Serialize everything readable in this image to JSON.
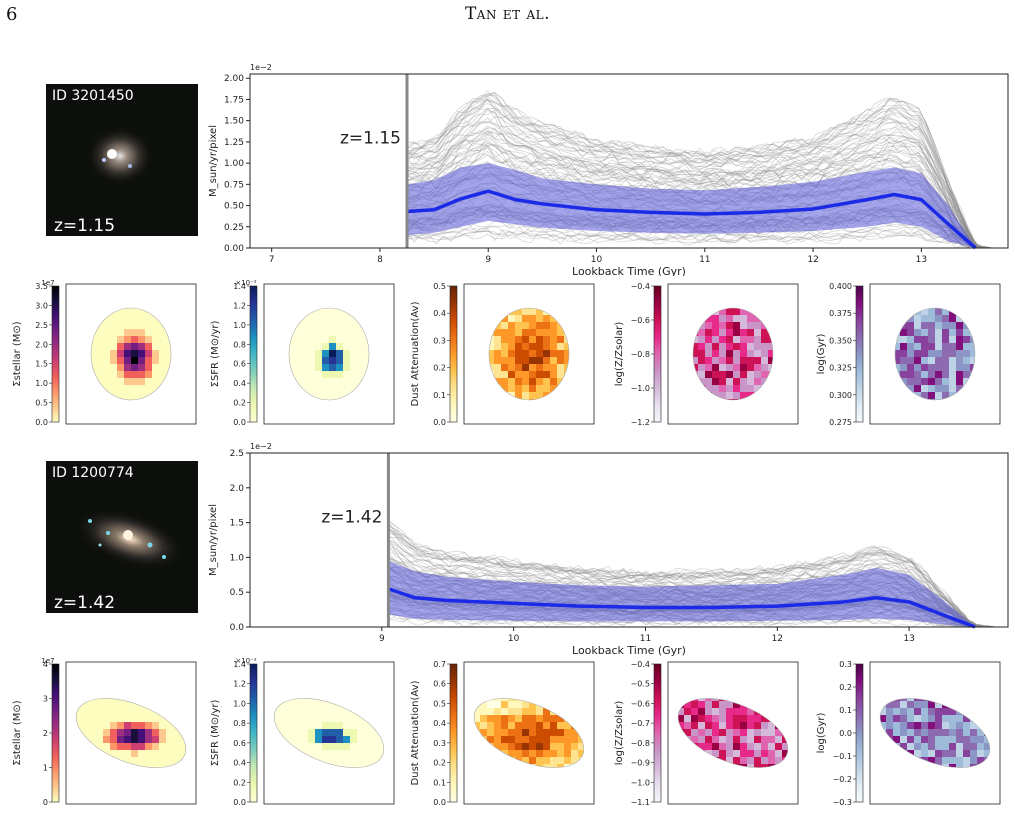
{
  "header": {
    "page_number": "6",
    "running_head": "Tan et al."
  },
  "colors": {
    "sfh_band": "#5a5ad8",
    "sfh_median": "#1a2ae6",
    "gray_track": "#8c8c8c"
  },
  "galaxies": [
    {
      "id_label": "ID 3201450",
      "redshift_label": "z=1.15",
      "sfh": {
        "type": "line",
        "xlabel": "Lookback Time (Gyr)",
        "ylabel": "M_sun/yr/pixel",
        "y_exponent": "1e−2",
        "xlim": [
          6.8,
          13.8
        ],
        "ylim": [
          0,
          2.05
        ],
        "x_ticks": [
          "7",
          "8",
          "9",
          "10",
          "11",
          "12",
          "13"
        ],
        "y_ticks": [
          "0.00",
          "0.25",
          "0.50",
          "0.75",
          "1.00",
          "1.25",
          "1.50",
          "1.75",
          "2.00"
        ],
        "z_marker_x": 8.25,
        "z_label": "z=1.15",
        "median": {
          "x": [
            8.25,
            8.5,
            8.75,
            9.0,
            9.25,
            9.5,
            10.0,
            10.5,
            11.0,
            11.5,
            12.0,
            12.5,
            12.75,
            13.0,
            13.25,
            13.5
          ],
          "y": [
            0.43,
            0.45,
            0.58,
            0.67,
            0.57,
            0.52,
            0.45,
            0.42,
            0.4,
            0.42,
            0.46,
            0.57,
            0.63,
            0.57,
            0.28,
            0.0
          ]
        },
        "band_upper": [
          0.75,
          0.8,
          0.95,
          1.0,
          0.92,
          0.82,
          0.75,
          0.7,
          0.68,
          0.72,
          0.78,
          0.9,
          0.95,
          0.88,
          0.5,
          0.0
        ],
        "band_lower": [
          0.15,
          0.18,
          0.25,
          0.32,
          0.28,
          0.24,
          0.2,
          0.18,
          0.17,
          0.18,
          0.2,
          0.25,
          0.3,
          0.25,
          0.08,
          0.0
        ],
        "gray_peak": 1.95
      },
      "maps": [
        {
          "cbar_label": "Σstellar (M⊙)",
          "exponent": "1e7",
          "ticks": [
            "0.0",
            "0.5",
            "1.0",
            "1.5",
            "2.0",
            "2.5",
            "3.0",
            "3.5"
          ],
          "colormap": "magma_r"
        },
        {
          "cbar_label": "ΣSFR (M⊙/yr)",
          "exponent": "×10⁻²",
          "ticks": [
            "0.0",
            "0.2",
            "0.4",
            "0.6",
            "0.8",
            "1.0",
            "1.2",
            "1.4"
          ],
          "colormap": "YlGnBu"
        },
        {
          "cbar_label": "Dust Attenuation(Av)",
          "exponent": "",
          "ticks": [
            "0.0",
            "0.1",
            "0.2",
            "0.3",
            "0.4",
            "0.5"
          ],
          "colormap": "YlOrBr"
        },
        {
          "cbar_label": "log(Z/Zsolar)",
          "exponent": "",
          "ticks": [
            "−1.2",
            "−1.0",
            "−0.8",
            "−0.6",
            "−0.4"
          ],
          "colormap": "PuRd"
        },
        {
          "cbar_label": "log(Gyr)",
          "exponent": "",
          "ticks": [
            "0.275",
            "0.300",
            "0.325",
            "0.350",
            "0.375",
            "0.400"
          ],
          "colormap": "BuPu"
        }
      ]
    },
    {
      "id_label": "ID 1200774",
      "redshift_label": "z=1.42",
      "sfh": {
        "type": "line",
        "xlabel": "Lookback Time (Gyr)",
        "ylabel": "M_sun/yr/pixel",
        "y_exponent": "1e−2",
        "xlim": [
          8.0,
          13.75
        ],
        "ylim": [
          0,
          2.5
        ],
        "x_ticks": [
          "9",
          "10",
          "11",
          "12",
          "13"
        ],
        "y_ticks": [
          "0.0",
          "0.5",
          "1.0",
          "1.5",
          "2.0",
          "2.5"
        ],
        "z_marker_x": 9.05,
        "z_label": "z=1.42",
        "median": {
          "x": [
            9.05,
            9.25,
            9.5,
            10.0,
            10.5,
            11.0,
            11.5,
            12.0,
            12.5,
            12.75,
            13.0,
            13.25,
            13.5
          ],
          "y": [
            0.55,
            0.42,
            0.38,
            0.34,
            0.3,
            0.28,
            0.28,
            0.3,
            0.36,
            0.42,
            0.36,
            0.18,
            0.0
          ]
        },
        "band_upper": [
          0.95,
          0.8,
          0.72,
          0.65,
          0.6,
          0.58,
          0.6,
          0.62,
          0.75,
          0.85,
          0.75,
          0.4,
          0.0
        ],
        "band_lower": [
          0.18,
          0.12,
          0.1,
          0.09,
          0.08,
          0.08,
          0.08,
          0.09,
          0.1,
          0.12,
          0.1,
          0.04,
          0.0
        ],
        "gray_peak": 2.35
      },
      "maps": [
        {
          "cbar_label": "Σstellar (M⊙)",
          "exponent": "1e7",
          "ticks": [
            "0",
            "1",
            "2",
            "3",
            "4"
          ],
          "colormap": "magma_r"
        },
        {
          "cbar_label": "ΣSFR (M⊙/yr)",
          "exponent": "×10⁻²",
          "ticks": [
            "0.0",
            "0.2",
            "0.4",
            "0.6",
            "0.8",
            "1.0",
            "1.2",
            "1.4"
          ],
          "colormap": "YlGnBu"
        },
        {
          "cbar_label": "Dust Attenuation(Av)",
          "exponent": "",
          "ticks": [
            "0.0",
            "0.1",
            "0.2",
            "0.3",
            "0.4",
            "0.5",
            "0.6",
            "0.7"
          ],
          "colormap": "YlOrBr"
        },
        {
          "cbar_label": "log(Z/Zsolar)",
          "exponent": "",
          "ticks": [
            "−1.1",
            "−1.0",
            "−0.9",
            "−0.8",
            "−0.7",
            "−0.6",
            "−0.5",
            "−0.4"
          ],
          "colormap": "PuRd"
        },
        {
          "cbar_label": "log(Gyr)",
          "exponent": "",
          "ticks": [
            "−0.3",
            "−0.2",
            "−0.1",
            "0.0",
            "0.1",
            "0.2",
            "0.3"
          ],
          "colormap": "BuPu"
        }
      ]
    }
  ]
}
